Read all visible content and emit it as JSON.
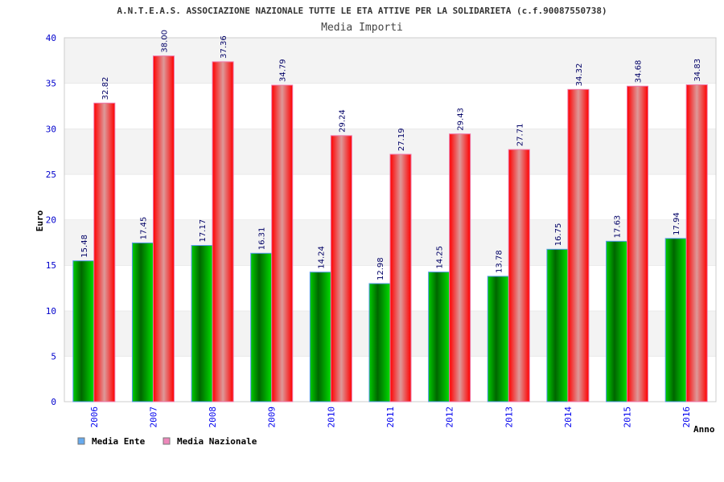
{
  "chart_data": {
    "type": "bar",
    "title": "A.N.T.E.A.S. ASSOCIAZIONE NAZIONALE TUTTE LE ETA ATTIVE PER LA SOLIDARIETA (c.f.90087550738)",
    "subtitle": "Media Importi",
    "xlabel": "Anno",
    "ylabel": "Euro",
    "ylim": [
      0,
      40
    ],
    "yticks": [
      "0",
      "5",
      "10",
      "15",
      "20",
      "25",
      "30",
      "35",
      "40"
    ],
    "categories": [
      "2006",
      "2007",
      "2008",
      "2009",
      "2010",
      "2011",
      "2012",
      "2013",
      "2014",
      "2015",
      "2016"
    ],
    "series": [
      {
        "name": "Media Ente",
        "color": "#00aa00",
        "legend_color": "#66aaee",
        "values": [
          15.48,
          17.45,
          17.17,
          16.31,
          14.24,
          12.98,
          14.25,
          13.78,
          16.75,
          17.63,
          17.94
        ],
        "labels": [
          "15.48",
          "17.45",
          "17.17",
          "16.31",
          "14.24",
          "12.98",
          "14.25",
          "13.78",
          "16.75",
          "17.63",
          "17.94"
        ]
      },
      {
        "name": "Media Nazionale",
        "color": "#ee0000",
        "legend_color": "#ee88bb",
        "values": [
          32.82,
          38.0,
          37.36,
          34.79,
          29.24,
          27.19,
          29.43,
          27.71,
          34.32,
          34.68,
          34.83
        ],
        "labels": [
          "32.82",
          "38.00",
          "37.36",
          "34.79",
          "29.24",
          "27.19",
          "29.43",
          "27.71",
          "34.32",
          "34.68",
          "34.83"
        ]
      }
    ],
    "grid": true,
    "legend": "bottom-left"
  }
}
